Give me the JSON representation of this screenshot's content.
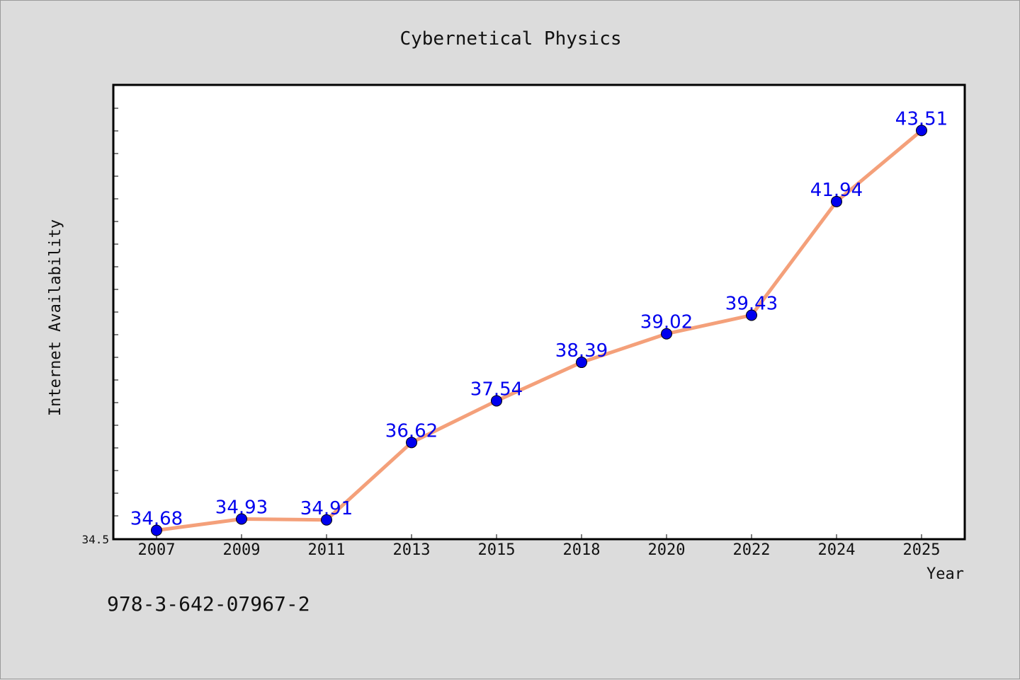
{
  "chart_data": {
    "type": "line",
    "title": "Cybernetical Physics",
    "xlabel": "Year",
    "ylabel": "Internet Availability",
    "categories": [
      "2007",
      "2009",
      "2011",
      "2013",
      "2015",
      "2018",
      "2020",
      "2022",
      "2024",
      "2025"
    ],
    "series": [
      {
        "values": [
          34.68,
          34.93,
          34.91,
          36.62,
          37.54,
          38.39,
          39.02,
          39.43,
          41.94,
          43.51
        ],
        "data_labels": [
          "34.68",
          "34.93",
          "34.91",
          "36.62",
          "37.54",
          "38.39",
          "39.02",
          "39.43",
          "41.94",
          "43.51"
        ]
      }
    ],
    "ylim": [
      34.5,
      44.5
    ],
    "y_tick_labels": [
      "34.5"
    ],
    "grid": false,
    "legend": "none",
    "colors": {
      "line": "#f4a07a",
      "marker": "#0000ee",
      "data_label": "#0000ee",
      "plot_background": "#ffffff",
      "page_background": "#dcdcdc"
    }
  },
  "footer": {
    "isbn": "978-3-642-07967-2"
  }
}
